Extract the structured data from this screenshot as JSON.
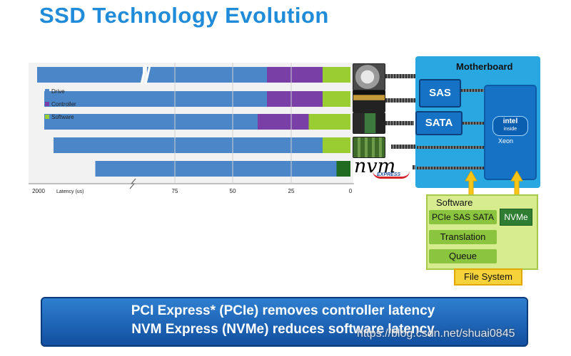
{
  "title": "SSD Technology Evolution",
  "chart_data": {
    "type": "bar",
    "stacked": true,
    "orientation": "horizontal",
    "xlabel": "Latency (us)",
    "x_axis_reversed": true,
    "x_axis_break": true,
    "tick_labels": [
      "2000",
      "75",
      "50",
      "25",
      "0"
    ],
    "legend": [
      "Drive",
      "Controller",
      "Software"
    ],
    "legend_placement": "left",
    "colors": {
      "Drive": "#4a86c8",
      "Controller": "#7a3fa6",
      "Software": "#9acd32",
      "NVMe Software": "#1f6b1f"
    },
    "rows": [
      {
        "drive": 2000,
        "controller": 12,
        "software": 6,
        "axis_break": true
      },
      {
        "drive": 48,
        "controller": 12,
        "software": 6
      },
      {
        "drive": 46,
        "controller": 11,
        "software": 9
      },
      {
        "drive": 58,
        "controller": 0,
        "software": 6
      },
      {
        "drive": 52,
        "controller": 0,
        "software": 3,
        "software_nvme": true
      }
    ]
  },
  "motherboard": {
    "label": "Motherboard",
    "sas": "SAS",
    "sata": "SATA",
    "cpu_brand": "intel",
    "cpu_sub": "inside",
    "cpu_name": "Xeon"
  },
  "nvm_logo": {
    "main": "nvm",
    "sub": "EXPRESS"
  },
  "software": {
    "title": "Software",
    "pcie_sas_sata": "PCIe SAS SATA",
    "nvme": "NVMe",
    "translation": "Translation",
    "queue": "Queue",
    "file_system": "File System"
  },
  "banner": {
    "line1": "PCI Express* (PCIe) removes controller latency",
    "line2": "NVM Express (NVMe) reduces software latency"
  },
  "watermark": "https://blog.csdn.net/shuai0845"
}
